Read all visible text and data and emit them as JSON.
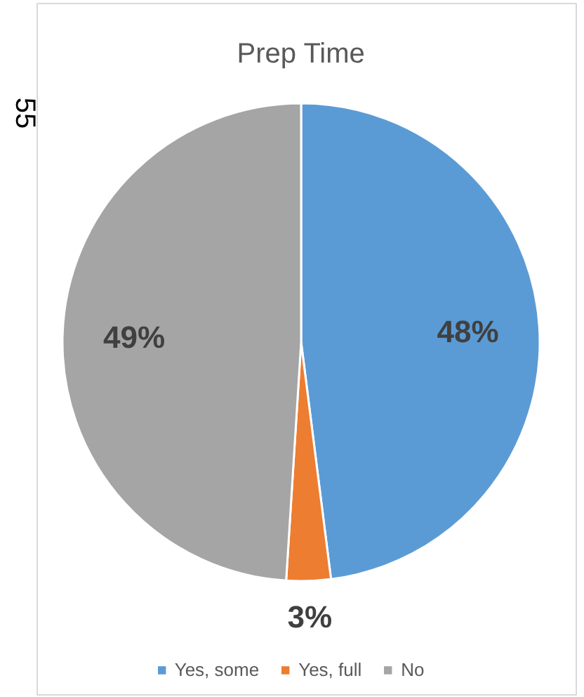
{
  "chart_data": {
    "type": "pie",
    "title": "Prep Time",
    "categories": [
      "Yes, some",
      "Yes, full",
      "No"
    ],
    "values": [
      48,
      3,
      49
    ],
    "colors": [
      "#5b9bd5",
      "#ed7d31",
      "#a5a5a5"
    ],
    "value_labels": [
      "48%",
      "3%",
      "49%"
    ],
    "legend": "bottom",
    "annotations": [
      "55"
    ]
  }
}
